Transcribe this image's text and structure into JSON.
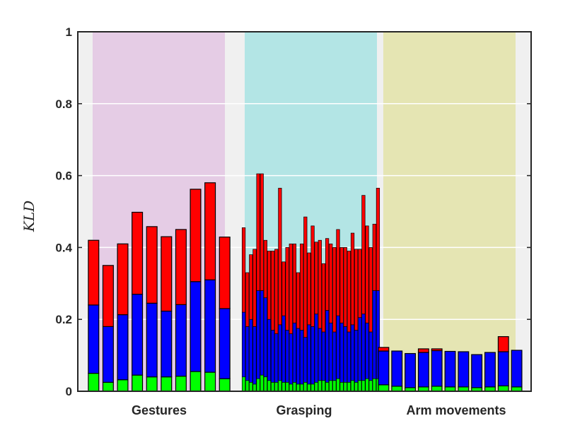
{
  "chart_data": {
    "type": "bar",
    "stacked": true,
    "ylabel": "KLD",
    "ylim": [
      0,
      1
    ],
    "yticks": [
      "0",
      "0.2",
      "0.4",
      "0.6",
      "0.8",
      "1"
    ],
    "grid": true,
    "colors": {
      "low": "#00ff00",
      "mid": "#0000ff",
      "top": "#ff0000",
      "outline": "#000000",
      "plot_bg": "#f0f0f0"
    },
    "groups": [
      {
        "label": "Gestures",
        "shade": "#e5cce5",
        "bars": [
          [
            0.05,
            0.19,
            0.18
          ],
          [
            0.025,
            0.155,
            0.17
          ],
          [
            0.032,
            0.181,
            0.197
          ],
          [
            0.045,
            0.225,
            0.228
          ],
          [
            0.04,
            0.205,
            0.213
          ],
          [
            0.04,
            0.183,
            0.207
          ],
          [
            0.042,
            0.199,
            0.209
          ],
          [
            0.055,
            0.25,
            0.257
          ],
          [
            0.053,
            0.257,
            0.27
          ],
          [
            0.035,
            0.195,
            0.199
          ]
        ]
      },
      {
        "label": "Grasping",
        "shade": "#b3e5e5",
        "bars": [
          [
            0.04,
            0.18,
            0.235
          ],
          [
            0.03,
            0.15,
            0.15
          ],
          [
            0.025,
            0.175,
            0.18
          ],
          [
            0.02,
            0.16,
            0.215
          ],
          [
            0.035,
            0.245,
            0.325
          ],
          [
            0.045,
            0.235,
            0.325
          ],
          [
            0.04,
            0.22,
            0.16
          ],
          [
            0.03,
            0.17,
            0.19
          ],
          [
            0.025,
            0.145,
            0.22
          ],
          [
            0.025,
            0.135,
            0.235
          ],
          [
            0.03,
            0.155,
            0.38
          ],
          [
            0.025,
            0.185,
            0.15
          ],
          [
            0.025,
            0.145,
            0.23
          ],
          [
            0.02,
            0.14,
            0.25
          ],
          [
            0.025,
            0.165,
            0.22
          ],
          [
            0.02,
            0.155,
            0.155
          ],
          [
            0.02,
            0.15,
            0.24
          ],
          [
            0.025,
            0.125,
            0.335
          ],
          [
            0.02,
            0.165,
            0.2
          ],
          [
            0.02,
            0.16,
            0.28
          ],
          [
            0.025,
            0.19,
            0.2
          ],
          [
            0.03,
            0.145,
            0.245
          ],
          [
            0.03,
            0.135,
            0.19
          ],
          [
            0.025,
            0.2,
            0.2
          ],
          [
            0.03,
            0.16,
            0.22
          ],
          [
            0.03,
            0.135,
            0.235
          ],
          [
            0.035,
            0.175,
            0.24
          ],
          [
            0.025,
            0.165,
            0.21
          ],
          [
            0.025,
            0.155,
            0.22
          ],
          [
            0.025,
            0.14,
            0.225
          ],
          [
            0.03,
            0.155,
            0.255
          ],
          [
            0.025,
            0.145,
            0.225
          ],
          [
            0.03,
            0.175,
            0.19
          ],
          [
            0.03,
            0.185,
            0.33
          ],
          [
            0.035,
            0.155,
            0.27
          ],
          [
            0.03,
            0.135,
            0.235
          ],
          [
            0.035,
            0.245,
            0.185
          ],
          [
            0.035,
            0.245,
            0.285
          ]
        ]
      },
      {
        "label": "Arm movements",
        "shade": "#e5e5b3",
        "bars": [
          [
            0.018,
            0.094,
            0.01
          ],
          [
            0.014,
            0.098,
            0.0
          ],
          [
            0.01,
            0.095,
            0.0
          ],
          [
            0.012,
            0.096,
            0.01
          ],
          [
            0.014,
            0.099,
            0.005
          ],
          [
            0.012,
            0.099,
            0.0
          ],
          [
            0.012,
            0.098,
            0.0
          ],
          [
            0.01,
            0.092,
            0.0
          ],
          [
            0.012,
            0.096,
            0.0
          ],
          [
            0.015,
            0.095,
            0.042
          ],
          [
            0.012,
            0.102,
            0.0
          ]
        ]
      }
    ]
  }
}
